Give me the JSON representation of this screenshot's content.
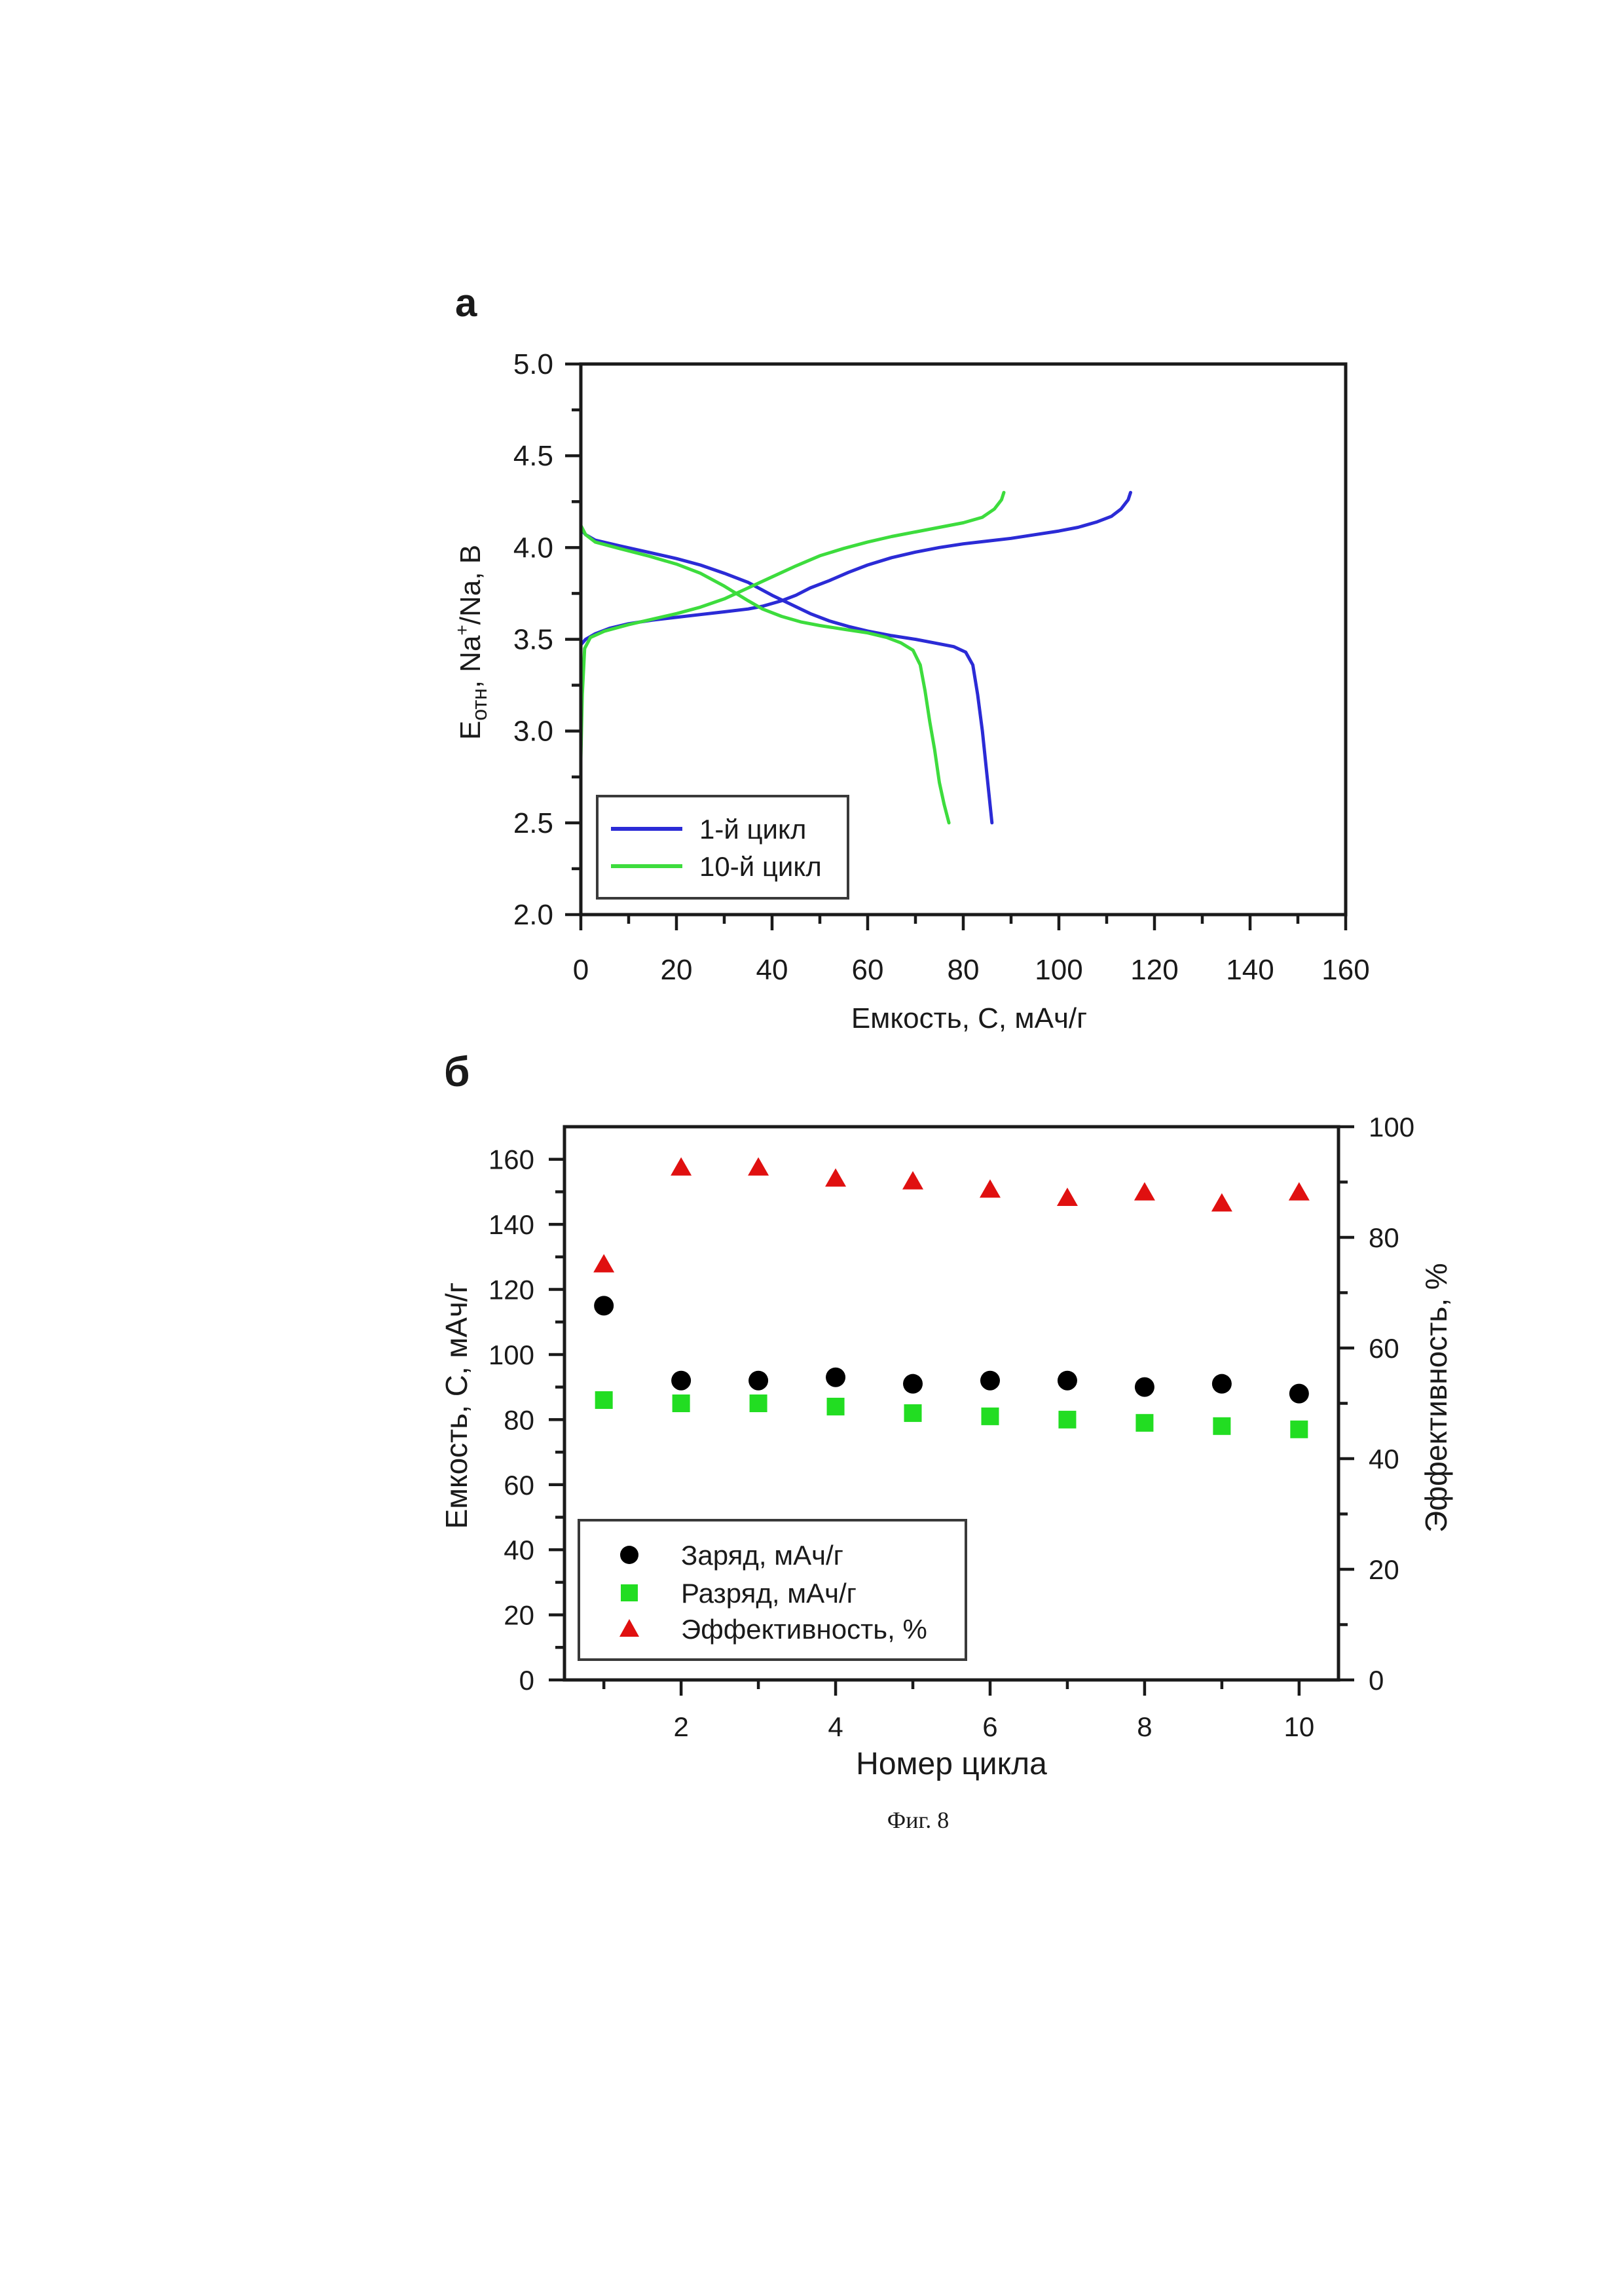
{
  "figure": {
    "caption": "Фиг. 8"
  },
  "chart_data": [
    {
      "panel_label": "а",
      "type": "line",
      "title": "",
      "xlabel": "Емкость, С, мАч/г",
      "ylabel": {
        "main": "E",
        "subscript": "отн",
        "middle": ", Na",
        "superscript": "+",
        "end": "/Na, В"
      },
      "xlim": [
        0,
        160
      ],
      "ylim": [
        2.0,
        5.0
      ],
      "xticks": [
        0,
        20,
        40,
        60,
        80,
        100,
        120,
        140,
        160
      ],
      "xtick_labels": [
        "0",
        "20",
        "40",
        "60",
        "80",
        "100",
        "120",
        "140",
        "160"
      ],
      "yticks": [
        2.0,
        2.5,
        3.0,
        3.5,
        4.0,
        4.5,
        5.0
      ],
      "ytick_labels": [
        "2.0",
        "2.5",
        "3.0",
        "3.5",
        "4.0",
        "4.5",
        "5.0"
      ],
      "grid": false,
      "legend_position": "bottom-left",
      "series": [
        {
          "name": "1-й цикл",
          "color": "#2b2bd6",
          "segments": [
            [
              [
                0,
                3.47
              ],
              [
                1,
                3.5
              ],
              [
                3,
                3.53
              ],
              [
                6,
                3.56
              ],
              [
                10,
                3.585
              ],
              [
                15,
                3.605
              ],
              [
                20,
                3.62
              ],
              [
                25,
                3.635
              ],
              [
                30,
                3.65
              ],
              [
                35,
                3.665
              ],
              [
                38,
                3.68
              ],
              [
                42,
                3.71
              ],
              [
                45,
                3.74
              ],
              [
                48,
                3.78
              ],
              [
                52,
                3.82
              ],
              [
                56,
                3.865
              ],
              [
                60,
                3.905
              ],
              [
                65,
                3.945
              ],
              [
                70,
                3.975
              ],
              [
                75,
                4.0
              ],
              [
                80,
                4.02
              ],
              [
                85,
                4.035
              ],
              [
                90,
                4.05
              ],
              [
                95,
                4.07
              ],
              [
                100,
                4.09
              ],
              [
                104,
                4.11
              ],
              [
                108,
                4.14
              ],
              [
                111,
                4.17
              ],
              [
                113,
                4.21
              ],
              [
                114.5,
                4.26
              ],
              [
                115,
                4.3
              ]
            ],
            [
              [
                0,
                4.1
              ],
              [
                1,
                4.07
              ],
              [
                3,
                4.04
              ],
              [
                8,
                4.01
              ],
              [
                14,
                3.975
              ],
              [
                20,
                3.94
              ],
              [
                25,
                3.905
              ],
              [
                30,
                3.86
              ],
              [
                35,
                3.81
              ],
              [
                40,
                3.74
              ],
              [
                44,
                3.69
              ],
              [
                48,
                3.64
              ],
              [
                52,
                3.6
              ],
              [
                56,
                3.57
              ],
              [
                60,
                3.545
              ],
              [
                65,
                3.52
              ],
              [
                70,
                3.5
              ],
              [
                74,
                3.48
              ],
              [
                78,
                3.46
              ],
              [
                80.5,
                3.43
              ],
              [
                82,
                3.36
              ],
              [
                83,
                3.2
              ],
              [
                84,
                3.0
              ],
              [
                85,
                2.75
              ],
              [
                86,
                2.5
              ]
            ]
          ]
        },
        {
          "name": "10-й цикл",
          "color": "#3ddc3d",
          "segments": [
            [
              [
                0,
                2.85
              ],
              [
                0.3,
                3.2
              ],
              [
                0.8,
                3.45
              ],
              [
                2,
                3.51
              ],
              [
                5,
                3.545
              ],
              [
                10,
                3.58
              ],
              [
                15,
                3.61
              ],
              [
                20,
                3.64
              ],
              [
                25,
                3.675
              ],
              [
                30,
                3.72
              ],
              [
                35,
                3.78
              ],
              [
                40,
                3.84
              ],
              [
                45,
                3.9
              ],
              [
                50,
                3.955
              ],
              [
                55,
                3.995
              ],
              [
                60,
                4.03
              ],
              [
                65,
                4.06
              ],
              [
                70,
                4.085
              ],
              [
                75,
                4.11
              ],
              [
                80,
                4.135
              ],
              [
                84,
                4.165
              ],
              [
                86.5,
                4.21
              ],
              [
                88,
                4.26
              ],
              [
                88.5,
                4.3
              ]
            ],
            [
              [
                0,
                4.12
              ],
              [
                1,
                4.07
              ],
              [
                3,
                4.03
              ],
              [
                8,
                3.995
              ],
              [
                14,
                3.955
              ],
              [
                20,
                3.91
              ],
              [
                25,
                3.86
              ],
              [
                30,
                3.79
              ],
              [
                35,
                3.71
              ],
              [
                38,
                3.665
              ],
              [
                42,
                3.625
              ],
              [
                46,
                3.595
              ],
              [
                50,
                3.575
              ],
              [
                55,
                3.555
              ],
              [
                60,
                3.535
              ],
              [
                64,
                3.51
              ],
              [
                67,
                3.48
              ],
              [
                69.5,
                3.44
              ],
              [
                71,
                3.36
              ],
              [
                72,
                3.22
              ],
              [
                73,
                3.05
              ],
              [
                74,
                2.9
              ],
              [
                75,
                2.72
              ],
              [
                76,
                2.6
              ],
              [
                77,
                2.5
              ]
            ]
          ]
        }
      ]
    },
    {
      "panel_label": "б",
      "type": "scatter",
      "title": "",
      "xlabel": "Номер цикла",
      "ylabel_left": "Емкость, С, мАч/г",
      "ylabel_right": "Эффективность, %",
      "xlim": [
        0.49,
        10.51
      ],
      "ylim_left": [
        0,
        170
      ],
      "ylim_right": [
        0,
        100
      ],
      "xticks": [
        2,
        4,
        6,
        8,
        10
      ],
      "xtick_labels": [
        "2",
        "4",
        "6",
        "8",
        "10"
      ],
      "xminor": [
        1,
        3,
        5,
        7,
        9
      ],
      "yticks_left": [
        0,
        20,
        40,
        60,
        80,
        100,
        120,
        140,
        160
      ],
      "ytick_labels_left": [
        "0",
        "20",
        "40",
        "60",
        "80",
        "100",
        "120",
        "140",
        "160"
      ],
      "yticks_right": [
        0,
        20,
        40,
        60,
        80,
        100
      ],
      "ytick_labels_right": [
        "0",
        "20",
        "40",
        "60",
        "80",
        "100"
      ],
      "grid": false,
      "legend_position": "bottom-left",
      "x": [
        1,
        2,
        3,
        4,
        5,
        6,
        7,
        8,
        9,
        10
      ],
      "series": [
        {
          "name": "Заряд, мАч/г",
          "marker": "circle",
          "color": "#000000",
          "axis": "left",
          "values": [
            115,
            92,
            92,
            93,
            91,
            92,
            92,
            90,
            91,
            88
          ]
        },
        {
          "name": "Разряд, мАч/г",
          "marker": "square",
          "color": "#22dd22",
          "axis": "left",
          "values": [
            86,
            85,
            85,
            84,
            82,
            81,
            80,
            79,
            78,
            77
          ]
        },
        {
          "name": "Эффективность, %",
          "marker": "triangle",
          "color": "#e01010",
          "axis": "right",
          "values": [
            75,
            92.5,
            92.5,
            90.5,
            90,
            88.5,
            87,
            88,
            86,
            88
          ]
        }
      ]
    }
  ]
}
